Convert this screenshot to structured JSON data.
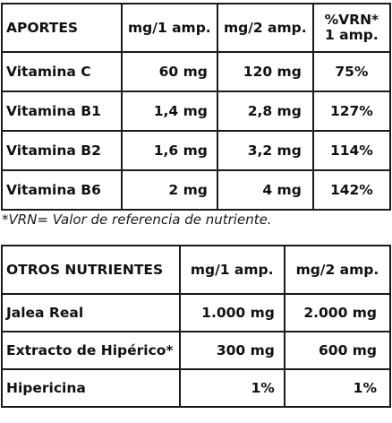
{
  "table1": {
    "headers": [
      "APORTES",
      "mg/1 amp.",
      "mg/2 amp.",
      "%VRN*",
      "1 amp."
    ],
    "rows": [
      [
        "Vitamina C",
        "60 mg",
        "120 mg",
        "75%"
      ],
      [
        "Vitamina B1",
        "1,4 mg",
        "2,8 mg",
        "127%"
      ],
      [
        "Vitamina B2",
        "1,6 mg",
        "3,2 mg",
        "114%"
      ],
      [
        "Vitamina B6",
        "2 mg",
        "4 mg",
        "142%"
      ]
    ]
  },
  "note": "*VRN= Valor de referencia de nutriente.",
  "table2": {
    "headers": [
      "OTROS NUTRIENTES",
      "mg/1 amp.",
      "mg/2 amp."
    ],
    "rows": [
      [
        "Jalea Real",
        "1.000 mg",
        "2.000 mg"
      ],
      [
        "Extracto de Hipérico*",
        "300 mg",
        "600 mg"
      ],
      [
        "Hipericina",
        "1%",
        "1%"
      ]
    ]
  }
}
